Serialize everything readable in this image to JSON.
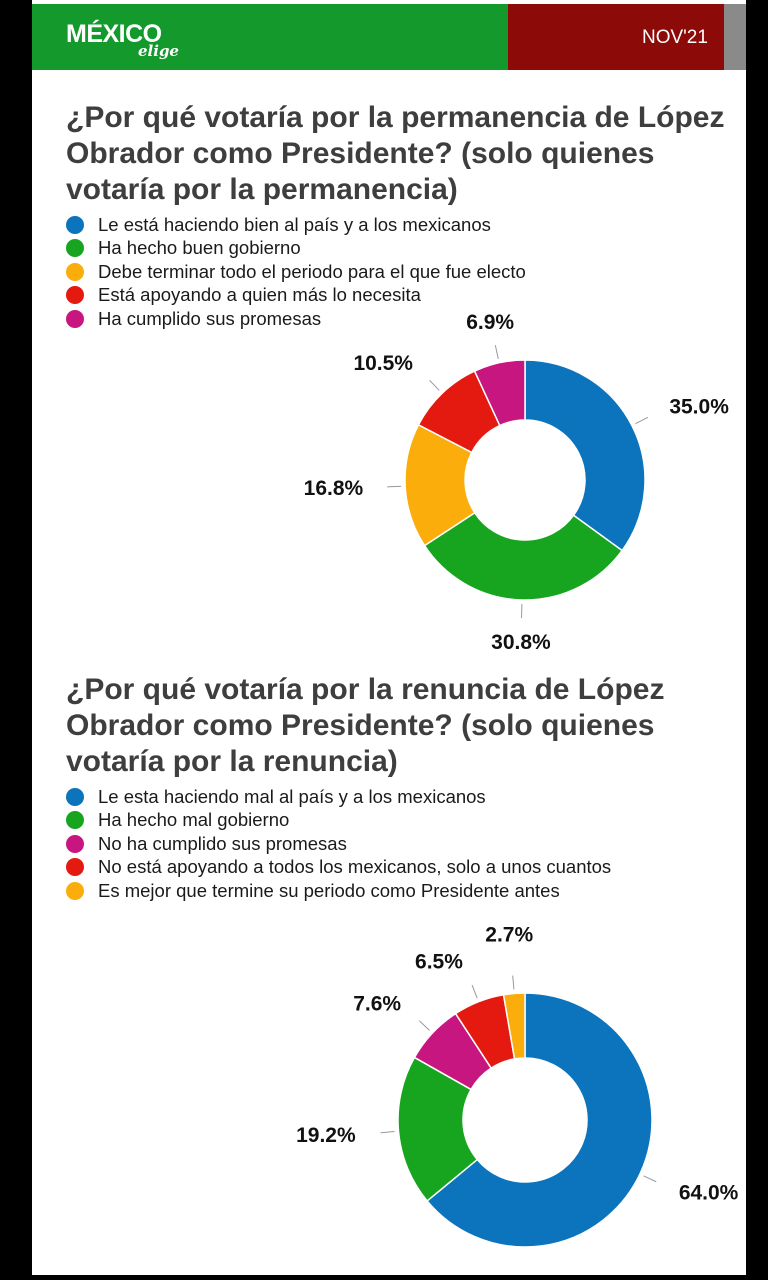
{
  "header": {
    "logo_main": "MÉXICO",
    "logo_sub": "elige",
    "date": "NOV'21",
    "colors": {
      "green": "#149a2c",
      "red": "#8c0b08",
      "gray": "#8a8a8a"
    }
  },
  "chart_data": [
    {
      "type": "pie",
      "title": "¿Por qué votaría por la permanencia de López Obrador como Presidente? (solo quienes votaría por la permanencia)",
      "donut": true,
      "categories": [
        "Le está haciendo bien al país y a los mexicanos",
        "Ha hecho buen gobierno",
        "Debe terminar todo el periodo para el que fue electo",
        "Está apoyando a quien más lo necesita",
        "Ha cumplido sus promesas"
      ],
      "values": [
        35.0,
        30.8,
        16.8,
        10.5,
        6.9
      ],
      "labels": [
        "35.0%",
        "30.8%",
        "16.8%",
        "10.5%",
        "6.9%"
      ],
      "colors": [
        "#0b74bd",
        "#17a51f",
        "#fbad0c",
        "#e4190f",
        "#c7167f"
      ],
      "legend": "top-left"
    },
    {
      "type": "pie",
      "title": "¿Por qué votaría por la renuncia de López Obrador como Presidente? (solo quienes votaría por la renuncia)",
      "donut": true,
      "categories": [
        "Le esta haciendo mal al país y a los mexicanos",
        "Ha hecho mal gobierno",
        "No ha cumplido sus promesas",
        "No está apoyando a todos los mexicanos, solo a unos cuantos",
        "Es mejor que termine su periodo como Presidente antes"
      ],
      "values": [
        64.0,
        19.2,
        7.6,
        6.5,
        2.7
      ],
      "labels": [
        "64.0%",
        "19.2%",
        "7.6%",
        "6.5%",
        "2.7%"
      ],
      "colors": [
        "#0b74bd",
        "#17a51f",
        "#c7167f",
        "#e4190f",
        "#fbad0c"
      ],
      "legend": "top-left"
    }
  ]
}
